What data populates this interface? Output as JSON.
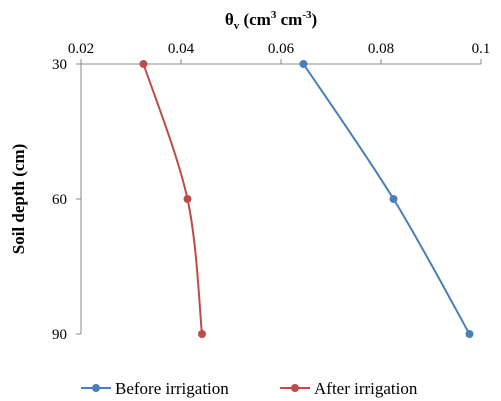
{
  "chart_data": {
    "type": "line",
    "title": "θᵥ (cm³ cm⁻³)",
    "title_parts": {
      "base": "θ",
      "sub": "v",
      "unit_open": " (cm",
      "exp1": "3",
      "unit_mid": " cm",
      "exp2": "-3",
      "unit_close": ")"
    },
    "xlabel": "",
    "ylabel": "Soil depth (cm)",
    "x_axis_position": "top",
    "y_inverted": true,
    "xlim": [
      0.02,
      0.1
    ],
    "ylim": [
      30,
      90
    ],
    "x_ticks": [
      "0.02",
      "0.04",
      "0.06",
      "0.08",
      "0.1"
    ],
    "x_tick_values": [
      0.02,
      0.04,
      0.06,
      0.08,
      0.1
    ],
    "y_ticks": [
      "30",
      "60",
      "90"
    ],
    "y_tick_values": [
      30,
      60,
      90
    ],
    "grid": false,
    "legend_position": "bottom",
    "series": [
      {
        "name": "Before irrigation",
        "color": "#4a7ebb",
        "points": [
          {
            "x": 0.0645,
            "y": 30
          },
          {
            "x": 0.0825,
            "y": 60
          },
          {
            "x": 0.0977,
            "y": 90
          }
        ]
      },
      {
        "name": "After irrigation",
        "color": "#be4b48",
        "points": [
          {
            "x": 0.0325,
            "y": 30
          },
          {
            "x": 0.0413,
            "y": 60
          },
          {
            "x": 0.0442,
            "y": 90
          }
        ]
      }
    ]
  }
}
